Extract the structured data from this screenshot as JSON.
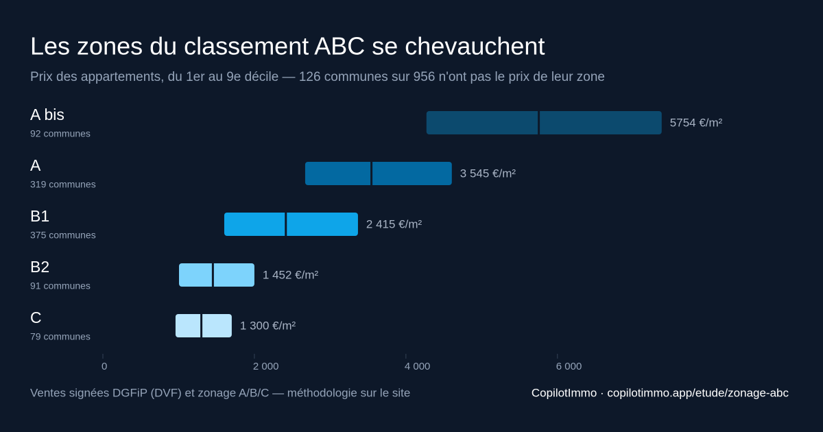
{
  "chart_data": {
    "type": "range",
    "title": "Les zones du classement ABC se chevauchent",
    "subtitle": "Prix des appartements, du 1er au 9e décile — 126 communes sur 956 n'ont pas le prix de leur zone",
    "categories": [
      "A bis",
      "A",
      "B1",
      "B2",
      "C"
    ],
    "sublabels": [
      "92 communes",
      "319 communes",
      "375 communes",
      "91 communes",
      "79 communes"
    ],
    "low": [
      4271,
      2670,
      1602,
      1005,
      959
    ],
    "high": [
      7376,
      4606,
      3367,
      2000,
      1701
    ],
    "values": [
      5754,
      3545,
      2415,
      1452,
      1300
    ],
    "value_labels": [
      "5754 €/m²",
      "3 545 €/m²",
      "2 415 €/m²",
      "1 452 €/m²",
      "1 300 €/m²"
    ],
    "colors": [
      "#0c4a6e",
      "#0369a1",
      "#0ea5e9",
      "#7dd3fc",
      "#bae6fd"
    ],
    "xlim": [
      0,
      8600
    ],
    "xticks": [
      0,
      {
        "value": 2000,
        "label": "2 000"
      },
      {
        "value": 4000,
        "label": "4 000"
      },
      {
        "value": 6000,
        "label": "6 000"
      }
    ],
    "source": "Ventes signées DGFiP (DVF) et zonage A/B/C — méthodologie sur le site",
    "credit": "CopilotImmo · copilotimmo.app/etude/zonage-abc"
  }
}
